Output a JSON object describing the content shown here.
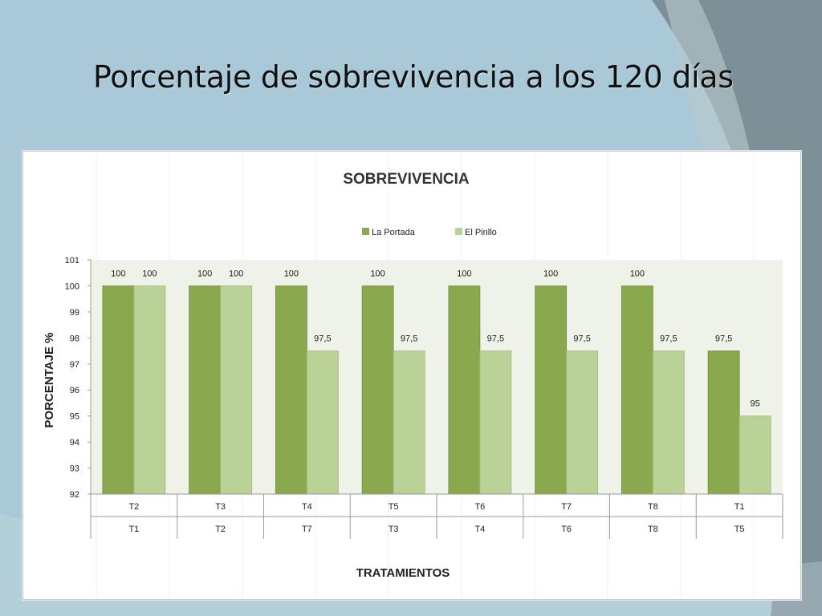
{
  "slide": {
    "title": "Porcentaje de sobrevivencia a los 120 días"
  },
  "colors": {
    "background": "#a9c9d8",
    "plot_area": "#eff2e8",
    "la_portada": "#8aa94f",
    "el_pinllo": "#bad197"
  },
  "chart_data": {
    "type": "bar",
    "title": "SOBREVIVENCIA",
    "xlabel": "TRATAMIENTOS",
    "ylabel": "PORCENTAJE %",
    "ylim": [
      92,
      101
    ],
    "yticks": [
      92,
      93,
      94,
      95,
      96,
      97,
      98,
      99,
      100,
      101
    ],
    "grid": false,
    "legend": "top-center",
    "categories": [
      {
        "top": "T2",
        "bottom": "T1"
      },
      {
        "top": "T3",
        "bottom": "T2"
      },
      {
        "top": "T4",
        "bottom": "T7"
      },
      {
        "top": "T5",
        "bottom": "T3"
      },
      {
        "top": "T6",
        "bottom": "T4"
      },
      {
        "top": "T7",
        "bottom": "T6"
      },
      {
        "top": "T8",
        "bottom": "T8"
      },
      {
        "top": "T1",
        "bottom": "T5"
      }
    ],
    "series": [
      {
        "name": "La Portada",
        "values": [
          100,
          100,
          100,
          100,
          100,
          100,
          100,
          97.5
        ],
        "labels": [
          "100",
          "100",
          "100",
          "100",
          "100",
          "100",
          "100",
          "97,5"
        ]
      },
      {
        "name": "El Pinllo",
        "values": [
          100,
          100,
          97.5,
          97.5,
          97.5,
          97.5,
          97.5,
          95
        ],
        "labels": [
          "100",
          "100",
          "97,5",
          "97,5",
          "97,5",
          "97,5",
          "97,5",
          "95"
        ]
      }
    ]
  }
}
